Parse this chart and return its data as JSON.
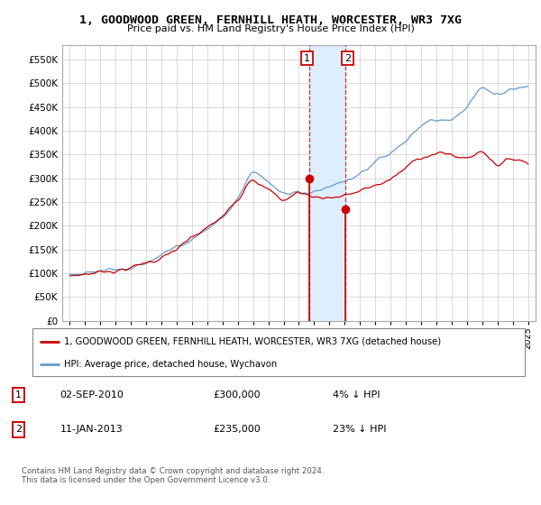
{
  "title": "1, GOODWOOD GREEN, FERNHILL HEATH, WORCESTER, WR3 7XG",
  "subtitle": "Price paid vs. HM Land Registry's House Price Index (HPI)",
  "legend_line1": "1, GOODWOOD GREEN, FERNHILL HEATH, WORCESTER, WR3 7XG (detached house)",
  "legend_line2": "HPI: Average price, detached house, Wychavon",
  "footer": "Contains HM Land Registry data © Crown copyright and database right 2024.\nThis data is licensed under the Open Government Licence v3.0.",
  "sale1_date": "02-SEP-2010",
  "sale1_price": "£300,000",
  "sale1_hpi": "4% ↓ HPI",
  "sale2_date": "11-JAN-2013",
  "sale2_price": "£235,000",
  "sale2_hpi": "23% ↓ HPI",
  "red_color": "#cc0000",
  "blue_color": "#6699cc",
  "highlight_color": "#ddeeff",
  "marker1_x": 2010.67,
  "marker1_y": 300000,
  "marker2_x": 2013.03,
  "marker2_y": 235000,
  "ylim": [
    0,
    580000
  ],
  "yticks": [
    0,
    50000,
    100000,
    150000,
    200000,
    250000,
    300000,
    350000,
    400000,
    450000,
    500000,
    550000
  ],
  "xlim": [
    1994.5,
    2025.5
  ],
  "xticks": [
    1995,
    1996,
    1997,
    1998,
    1999,
    2000,
    2001,
    2002,
    2003,
    2004,
    2005,
    2006,
    2007,
    2008,
    2009,
    2010,
    2011,
    2012,
    2013,
    2014,
    2015,
    2016,
    2017,
    2018,
    2019,
    2020,
    2021,
    2022,
    2023,
    2024,
    2025
  ]
}
